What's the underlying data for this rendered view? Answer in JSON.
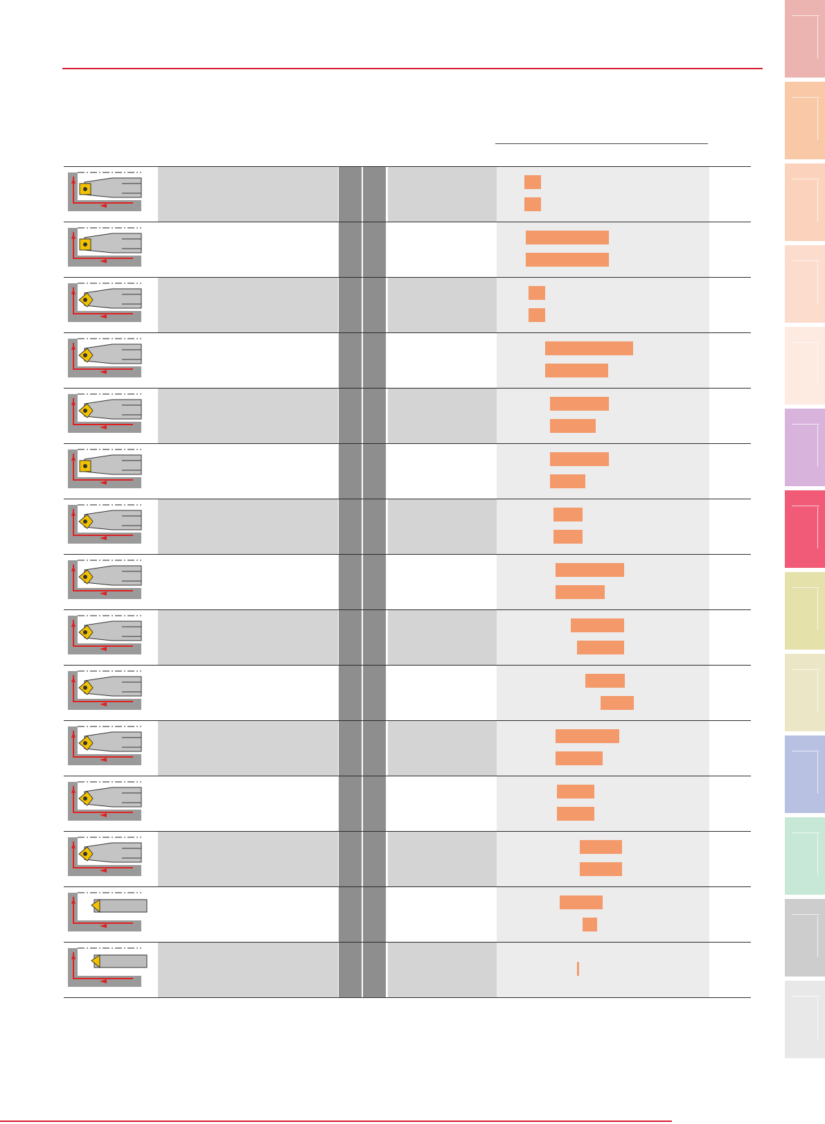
{
  "colors": {
    "accent_red": "#d7192e",
    "bar_orange": "#f4996a",
    "row_shade": "#d4d4d4",
    "grade_gray": "#8e8e8e",
    "chart_bg": "#ececec"
  },
  "rows": [
    {
      "icon": "facing-boring-tool-icon",
      "shade": true,
      "bars": [
        [
          40,
          64
        ],
        [
          40,
          64
        ]
      ]
    },
    {
      "icon": "boring-bar-square-insert-icon",
      "shade": false,
      "bars": [
        [
          42,
          162
        ],
        [
          42,
          162
        ]
      ]
    },
    {
      "icon": "small-boring-tool-icon",
      "shade": true,
      "bars": [
        [
          46,
          70
        ],
        [
          46,
          70
        ]
      ]
    },
    {
      "icon": "boring-bar-rhombic-insert-icon",
      "shade": false,
      "bars": [
        [
          70,
          197
        ],
        [
          70,
          161
        ]
      ]
    },
    {
      "icon": "boring-bar-rhombic-insert-icon",
      "shade": true,
      "bars": [
        [
          77,
          162
        ],
        [
          77,
          143
        ]
      ]
    },
    {
      "icon": "boring-bar-square-insert-icon",
      "shade": false,
      "bars": [
        [
          77,
          162
        ],
        [
          77,
          128
        ]
      ]
    },
    {
      "icon": "boring-bar-rhombic-insert-icon",
      "shade": true,
      "bars": [
        [
          82,
          124
        ],
        [
          82,
          124
        ]
      ]
    },
    {
      "icon": "copy-boring-bar-icon",
      "shade": false,
      "bars": [
        [
          85,
          184
        ],
        [
          85,
          156
        ]
      ]
    },
    {
      "icon": "copy-boring-bar-icon",
      "shade": true,
      "bars": [
        [
          107,
          184
        ],
        [
          116,
          184
        ]
      ]
    },
    {
      "icon": "copy-boring-bar-icon",
      "shade": false,
      "bars": [
        [
          128,
          185
        ],
        [
          150,
          198
        ]
      ]
    },
    {
      "icon": "copy-boring-bar-icon",
      "shade": true,
      "bars": [
        [
          85,
          177
        ],
        [
          85,
          153
        ]
      ]
    },
    {
      "icon": "copy-boring-bar-icon",
      "shade": false,
      "bars": [
        [
          87,
          141
        ],
        [
          87,
          141
        ]
      ]
    },
    {
      "icon": "copy-boring-bar-icon",
      "shade": true,
      "bars": [
        [
          120,
          181
        ],
        [
          120,
          181
        ]
      ]
    },
    {
      "icon": "back-boring-tool-icon",
      "shade": false,
      "bars": [
        [
          91,
          153
        ],
        [
          124,
          145
        ]
      ]
    },
    {
      "icon": "back-boring-tool-icon",
      "shade": true,
      "bars": [
        [
          116,
          119
        ]
      ]
    }
  ],
  "tabs": [
    {
      "color": "#ecb4b0",
      "top": 0
    },
    {
      "color": "#f9c8a6",
      "top": 118
    },
    {
      "color": "#fbd3bc",
      "top": 236
    },
    {
      "color": "#fcdccd",
      "top": 354
    },
    {
      "color": "#fdeae1",
      "top": 472
    },
    {
      "color": "#d8b4dd",
      "top": 590
    },
    {
      "color": "#f15b78",
      "top": 708
    },
    {
      "color": "#e4e1ab",
      "top": 826
    },
    {
      "color": "#ebe7c6",
      "top": 944
    },
    {
      "color": "#b9c1e3",
      "top": 1062
    },
    {
      "color": "#c7e8d6",
      "top": 1180
    },
    {
      "color": "#cdcdcd",
      "top": 1298
    },
    {
      "color": "#e8e8e8",
      "top": 1416
    }
  ]
}
